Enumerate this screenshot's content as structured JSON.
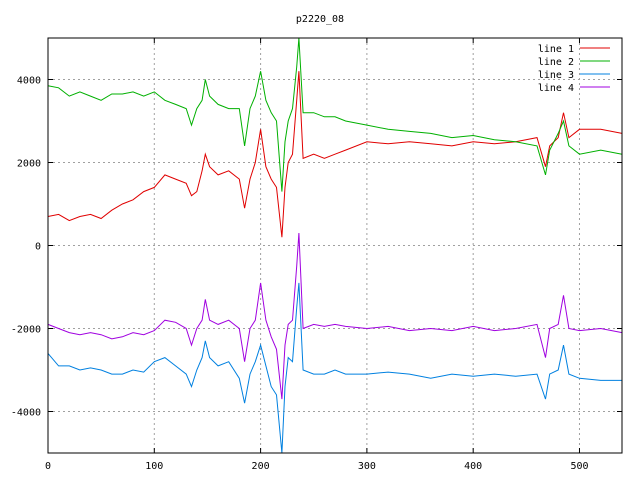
{
  "chart_data": {
    "type": "line",
    "title": "p2220_08",
    "xlabel": "",
    "ylabel": "",
    "xlim": [
      0,
      540
    ],
    "ylim": [
      -5000,
      5000
    ],
    "x_ticks": [
      0,
      100,
      200,
      300,
      400,
      500
    ],
    "y_ticks": [
      -4000,
      -2000,
      0,
      2000,
      4000
    ],
    "grid": true,
    "legend_position": "top-right",
    "series": [
      {
        "name": "line 1",
        "color": "#e00000",
        "x": [
          0,
          10,
          20,
          30,
          40,
          50,
          60,
          70,
          80,
          90,
          100,
          110,
          120,
          130,
          135,
          140,
          145,
          148,
          152,
          160,
          170,
          180,
          185,
          190,
          195,
          200,
          205,
          210,
          215,
          220,
          223,
          226,
          230,
          234,
          236,
          240,
          250,
          260,
          270,
          280,
          300,
          320,
          340,
          360,
          380,
          400,
          420,
          440,
          460,
          468,
          472,
          480,
          485,
          490,
          500,
          520,
          540
        ],
        "values": [
          700,
          750,
          600,
          700,
          750,
          650,
          850,
          1000,
          1100,
          1300,
          1400,
          1700,
          1600,
          1500,
          1200,
          1300,
          1800,
          2200,
          1900,
          1700,
          1800,
          1600,
          900,
          1600,
          2000,
          2800,
          1900,
          1600,
          1400,
          200,
          1400,
          2000,
          2200,
          3500,
          4200,
          2100,
          2200,
          2100,
          2200,
          2300,
          2500,
          2450,
          2500,
          2450,
          2400,
          2500,
          2450,
          2500,
          2600,
          1900,
          2400,
          2600,
          3200,
          2600,
          2800,
          2800,
          2700
        ]
      },
      {
        "name": "line 2",
        "color": "#00b000",
        "x": [
          0,
          10,
          20,
          30,
          40,
          50,
          60,
          70,
          80,
          90,
          100,
          110,
          120,
          130,
          135,
          140,
          145,
          148,
          152,
          160,
          170,
          180,
          185,
          190,
          195,
          200,
          205,
          210,
          215,
          220,
          223,
          226,
          230,
          234,
          236,
          240,
          250,
          260,
          270,
          280,
          300,
          320,
          340,
          360,
          380,
          400,
          420,
          440,
          460,
          468,
          472,
          480,
          485,
          490,
          500,
          520,
          540
        ],
        "values": [
          3850,
          3800,
          3600,
          3700,
          3600,
          3500,
          3650,
          3650,
          3700,
          3600,
          3700,
          3500,
          3400,
          3300,
          2900,
          3300,
          3500,
          4000,
          3600,
          3400,
          3300,
          3300,
          2400,
          3300,
          3600,
          4200,
          3500,
          3200,
          3000,
          1300,
          2500,
          3000,
          3300,
          4300,
          5000,
          3200,
          3200,
          3100,
          3100,
          3000,
          2900,
          2800,
          2750,
          2700,
          2600,
          2650,
          2550,
          2500,
          2400,
          1700,
          2300,
          2700,
          3000,
          2400,
          2200,
          2300,
          2200
        ]
      },
      {
        "name": "line 3",
        "color": "#0080e0",
        "x": [
          0,
          10,
          20,
          30,
          40,
          50,
          60,
          70,
          80,
          90,
          100,
          110,
          120,
          130,
          135,
          140,
          145,
          148,
          152,
          160,
          170,
          180,
          185,
          190,
          195,
          200,
          205,
          210,
          215,
          220,
          223,
          226,
          230,
          234,
          236,
          240,
          250,
          260,
          270,
          280,
          300,
          320,
          340,
          360,
          380,
          400,
          420,
          440,
          460,
          468,
          472,
          480,
          485,
          490,
          500,
          520,
          540
        ],
        "values": [
          -2600,
          -2900,
          -2900,
          -3000,
          -2950,
          -3000,
          -3100,
          -3100,
          -3000,
          -3050,
          -2800,
          -2700,
          -2900,
          -3100,
          -3400,
          -3000,
          -2700,
          -2300,
          -2700,
          -2900,
          -2800,
          -3200,
          -3800,
          -3100,
          -2800,
          -2400,
          -2900,
          -3400,
          -3600,
          -5000,
          -3400,
          -2700,
          -2800,
          -1500,
          -900,
          -3000,
          -3100,
          -3100,
          -3000,
          -3100,
          -3100,
          -3050,
          -3100,
          -3200,
          -3100,
          -3150,
          -3100,
          -3150,
          -3100,
          -3700,
          -3100,
          -3000,
          -2400,
          -3100,
          -3200,
          -3250,
          -3250
        ]
      },
      {
        "name": "line 4",
        "color": "#a000e0",
        "x": [
          0,
          10,
          20,
          30,
          40,
          50,
          60,
          70,
          80,
          90,
          100,
          110,
          120,
          130,
          135,
          140,
          145,
          148,
          152,
          160,
          170,
          180,
          185,
          190,
          195,
          200,
          205,
          210,
          215,
          220,
          223,
          226,
          230,
          234,
          236,
          240,
          250,
          260,
          270,
          280,
          300,
          320,
          340,
          360,
          380,
          400,
          420,
          440,
          460,
          468,
          472,
          480,
          485,
          490,
          500,
          520,
          540
        ],
        "values": [
          -1900,
          -2000,
          -2100,
          -2150,
          -2100,
          -2150,
          -2250,
          -2200,
          -2100,
          -2150,
          -2050,
          -1800,
          -1850,
          -2000,
          -2400,
          -2000,
          -1800,
          -1300,
          -1800,
          -1900,
          -1800,
          -2000,
          -2800,
          -2000,
          -1800,
          -900,
          -1800,
          -2200,
          -2500,
          -3700,
          -2400,
          -1900,
          -1800,
          -500,
          300,
          -2000,
          -1900,
          -1950,
          -1900,
          -1950,
          -2000,
          -1950,
          -2050,
          -2000,
          -2050,
          -1950,
          -2050,
          -2000,
          -1900,
          -2700,
          -2000,
          -1900,
          -1200,
          -2000,
          -2050,
          -2000,
          -2100
        ]
      }
    ]
  }
}
